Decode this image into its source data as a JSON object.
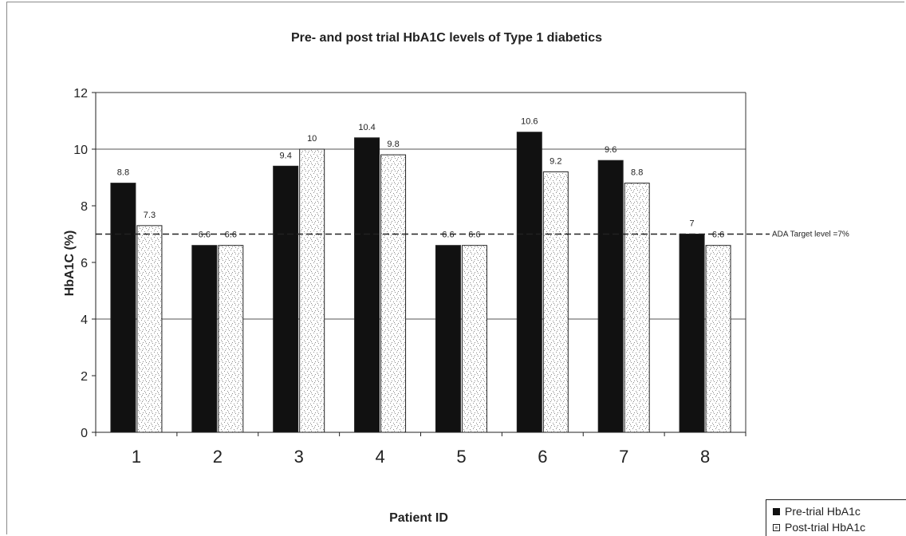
{
  "chart_data": {
    "type": "bar",
    "title": "Pre- and post trial HbA1C levels of Type 1 diabetics",
    "xlabel": "Patient ID",
    "ylabel": "HbA1C (%)",
    "categories": [
      "1",
      "2",
      "3",
      "4",
      "5",
      "6",
      "7",
      "8"
    ],
    "series": [
      {
        "name": "Pre-trial HbA1c",
        "values": [
          8.8,
          6.6,
          9.4,
          10.4,
          6.6,
          10.6,
          9.6,
          7
        ],
        "labels": [
          "8.8",
          "6.6",
          "9.4",
          "10.4",
          "6.6",
          "10.6",
          "9.6",
          "7"
        ],
        "color": "#111111"
      },
      {
        "name": "Post-trial HbA1c",
        "values": [
          7.3,
          6.6,
          10,
          9.8,
          6.6,
          9.2,
          8.8,
          6.6
        ],
        "labels": [
          "7.3",
          "6.6",
          "10",
          "9.8",
          "6.6",
          "9.2",
          "8.8",
          "6.6"
        ],
        "color": "#ffffff"
      }
    ],
    "ylim": [
      0,
      12
    ],
    "yticks": [
      "0",
      "2",
      "4",
      "6",
      "8",
      "10",
      "12"
    ],
    "gridlines": [
      4,
      10
    ],
    "reference_line": {
      "value": 7,
      "label": "ADA Target level =7%",
      "style": "dashed"
    },
    "legend_position": "bottom-right"
  }
}
